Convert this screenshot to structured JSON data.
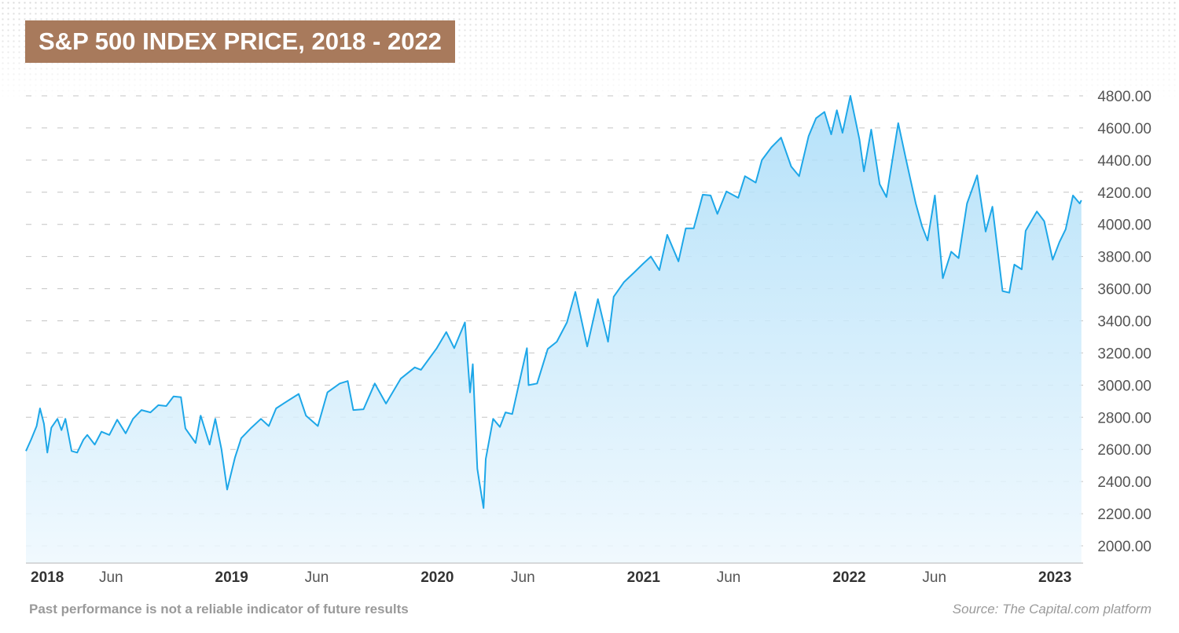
{
  "title": "S&P 500 INDEX PRICE, 2018 - 2022",
  "disclaimer": "Past performance is not a reliable indicator of future results",
  "source": "Source: The Capital.com platform",
  "colors": {
    "line": "#1ea7e8",
    "fill": "#bfe5f9",
    "title_bg": "#a87a5c"
  },
  "chart_data": {
    "type": "area",
    "title": "S&P 500 INDEX PRICE, 2018 - 2022",
    "xlabel": "",
    "ylabel": "",
    "ylim": [
      2000,
      4800
    ],
    "xlim": [
      "2018-01-01",
      "2023-02-20"
    ],
    "y_ticks": [
      "2000.00",
      "2200.00",
      "2400.00",
      "2600.00",
      "2800.00",
      "3000.00",
      "3200.00",
      "3400.00",
      "3600.00",
      "3800.00",
      "4000.00",
      "4200.00",
      "4400.00",
      "4600.00",
      "4800.00"
    ],
    "x_ticks": [
      {
        "date": "2018-01-01",
        "label": "2018",
        "bold": true
      },
      {
        "date": "2018-06-01",
        "label": "Jun",
        "bold": false
      },
      {
        "date": "2019-01-01",
        "label": "2019",
        "bold": true
      },
      {
        "date": "2019-06-01",
        "label": "Jun",
        "bold": false
      },
      {
        "date": "2020-01-01",
        "label": "2020",
        "bold": true
      },
      {
        "date": "2020-06-01",
        "label": "Jun",
        "bold": false
      },
      {
        "date": "2021-01-01",
        "label": "2021",
        "bold": true
      },
      {
        "date": "2021-06-01",
        "label": "Jun",
        "bold": false
      },
      {
        "date": "2022-01-01",
        "label": "2022",
        "bold": true
      },
      {
        "date": "2022-06-01",
        "label": "Jun",
        "bold": false
      },
      {
        "date": "2023-01-01",
        "label": "2023",
        "bold": true
      }
    ],
    "grid": true,
    "y_axis_position": "right",
    "series": [
      {
        "values": [
          [
            "2018-01-01",
            2590
          ],
          [
            "2018-01-10",
            2660
          ],
          [
            "2018-01-20",
            2745
          ],
          [
            "2018-01-26",
            2855
          ],
          [
            "2018-02-02",
            2760
          ],
          [
            "2018-02-08",
            2580
          ],
          [
            "2018-02-15",
            2735
          ],
          [
            "2018-02-26",
            2790
          ],
          [
            "2018-03-05",
            2720
          ],
          [
            "2018-03-12",
            2790
          ],
          [
            "2018-03-23",
            2590
          ],
          [
            "2018-04-02",
            2580
          ],
          [
            "2018-04-13",
            2660
          ],
          [
            "2018-04-20",
            2690
          ],
          [
            "2018-05-03",
            2630
          ],
          [
            "2018-05-15",
            2710
          ],
          [
            "2018-05-29",
            2690
          ],
          [
            "2018-06-12",
            2785
          ],
          [
            "2018-06-27",
            2700
          ],
          [
            "2018-07-10",
            2790
          ],
          [
            "2018-07-25",
            2845
          ],
          [
            "2018-08-10",
            2830
          ],
          [
            "2018-08-24",
            2875
          ],
          [
            "2018-09-07",
            2870
          ],
          [
            "2018-09-20",
            2930
          ],
          [
            "2018-10-03",
            2925
          ],
          [
            "2018-10-11",
            2730
          ],
          [
            "2018-10-29",
            2640
          ],
          [
            "2018-11-07",
            2810
          ],
          [
            "2018-11-23",
            2630
          ],
          [
            "2018-12-03",
            2790
          ],
          [
            "2018-12-14",
            2600
          ],
          [
            "2018-12-24",
            2350
          ],
          [
            "2019-01-07",
            2550
          ],
          [
            "2019-01-18",
            2670
          ],
          [
            "2019-02-05",
            2735
          ],
          [
            "2019-02-22",
            2790
          ],
          [
            "2019-03-08",
            2745
          ],
          [
            "2019-03-21",
            2855
          ],
          [
            "2019-04-05",
            2890
          ],
          [
            "2019-04-30",
            2945
          ],
          [
            "2019-05-13",
            2810
          ],
          [
            "2019-06-03",
            2745
          ],
          [
            "2019-06-20",
            2955
          ],
          [
            "2019-07-12",
            3010
          ],
          [
            "2019-07-26",
            3025
          ],
          [
            "2019-08-05",
            2845
          ],
          [
            "2019-08-23",
            2850
          ],
          [
            "2019-09-12",
            3010
          ],
          [
            "2019-10-02",
            2885
          ],
          [
            "2019-10-28",
            3040
          ],
          [
            "2019-11-22",
            3110
          ],
          [
            "2019-12-03",
            3095
          ],
          [
            "2019-12-31",
            3230
          ],
          [
            "2020-01-17",
            3330
          ],
          [
            "2020-01-31",
            3230
          ],
          [
            "2020-02-19",
            3390
          ],
          [
            "2020-02-28",
            2955
          ],
          [
            "2020-03-04",
            3130
          ],
          [
            "2020-03-12",
            2480
          ],
          [
            "2020-03-16",
            2390
          ],
          [
            "2020-03-23",
            2235
          ],
          [
            "2020-03-27",
            2540
          ],
          [
            "2020-04-09",
            2790
          ],
          [
            "2020-04-21",
            2740
          ],
          [
            "2020-05-01",
            2830
          ],
          [
            "2020-05-13",
            2820
          ],
          [
            "2020-06-08",
            3230
          ],
          [
            "2020-06-11",
            3000
          ],
          [
            "2020-06-26",
            3010
          ],
          [
            "2020-07-15",
            3225
          ],
          [
            "2020-07-31",
            3270
          ],
          [
            "2020-08-18",
            3390
          ],
          [
            "2020-09-02",
            3580
          ],
          [
            "2020-09-23",
            3240
          ],
          [
            "2020-10-12",
            3535
          ],
          [
            "2020-10-30",
            3270
          ],
          [
            "2020-11-09",
            3550
          ],
          [
            "2020-11-27",
            3640
          ],
          [
            "2020-12-15",
            3700
          ],
          [
            "2020-12-31",
            3755
          ],
          [
            "2021-01-14",
            3800
          ],
          [
            "2021-01-29",
            3715
          ],
          [
            "2021-02-12",
            3935
          ],
          [
            "2021-03-04",
            3770
          ],
          [
            "2021-03-17",
            3975
          ],
          [
            "2021-03-31",
            3975
          ],
          [
            "2021-04-16",
            4185
          ],
          [
            "2021-04-30",
            4180
          ],
          [
            "2021-05-12",
            4065
          ],
          [
            "2021-05-28",
            4205
          ],
          [
            "2021-06-18",
            4165
          ],
          [
            "2021-06-30",
            4300
          ],
          [
            "2021-07-19",
            4260
          ],
          [
            "2021-07-30",
            4400
          ],
          [
            "2021-08-16",
            4480
          ],
          [
            "2021-09-02",
            4540
          ],
          [
            "2021-09-20",
            4360
          ],
          [
            "2021-10-04",
            4300
          ],
          [
            "2021-10-21",
            4550
          ],
          [
            "2021-11-03",
            4660
          ],
          [
            "2021-11-18",
            4700
          ],
          [
            "2021-11-30",
            4560
          ],
          [
            "2021-12-10",
            4710
          ],
          [
            "2021-12-20",
            4570
          ],
          [
            "2022-01-03",
            4800
          ],
          [
            "2022-01-19",
            4530
          ],
          [
            "2022-01-27",
            4330
          ],
          [
            "2022-02-09",
            4590
          ],
          [
            "2022-02-24",
            4250
          ],
          [
            "2022-03-08",
            4170
          ],
          [
            "2022-03-29",
            4630
          ],
          [
            "2022-04-12",
            4400
          ],
          [
            "2022-04-29",
            4130
          ],
          [
            "2022-05-10",
            3990
          ],
          [
            "2022-05-20",
            3900
          ],
          [
            "2022-06-02",
            4180
          ],
          [
            "2022-06-16",
            3665
          ],
          [
            "2022-07-01",
            3830
          ],
          [
            "2022-07-14",
            3790
          ],
          [
            "2022-07-29",
            4130
          ],
          [
            "2022-08-16",
            4305
          ],
          [
            "2022-08-31",
            3955
          ],
          [
            "2022-09-12",
            4110
          ],
          [
            "2022-09-30",
            3585
          ],
          [
            "2022-10-12",
            3575
          ],
          [
            "2022-10-21",
            3750
          ],
          [
            "2022-11-03",
            3720
          ],
          [
            "2022-11-10",
            3960
          ],
          [
            "2022-11-30",
            4080
          ],
          [
            "2022-12-13",
            4020
          ],
          [
            "2022-12-28",
            3780
          ],
          [
            "2023-01-09",
            3890
          ],
          [
            "2023-01-20",
            3970
          ],
          [
            "2023-02-02",
            4180
          ],
          [
            "2023-02-14",
            4130
          ],
          [
            "2023-02-17",
            4150
          ]
        ]
      }
    ]
  }
}
